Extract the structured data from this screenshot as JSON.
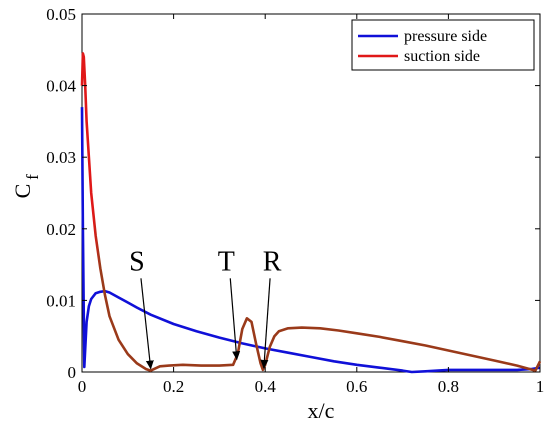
{
  "chart_data": {
    "type": "line",
    "xlabel": "x/c",
    "ylabel": "C",
    "ylabel_sub": "f",
    "xlim": [
      0,
      1
    ],
    "ylim": [
      0,
      0.05
    ],
    "xticks": [
      0,
      0.2,
      0.4,
      0.6,
      0.8,
      1
    ],
    "xtick_labels": [
      "0",
      "0.2",
      "0.4",
      "0.6",
      "0.8",
      "1"
    ],
    "yticks": [
      0,
      0.01,
      0.02,
      0.03,
      0.04,
      0.05
    ],
    "ytick_labels": [
      "0",
      "0.01",
      "0.02",
      "0.03",
      "0.04",
      "0.05"
    ],
    "grid": false,
    "legend_position": "top-right",
    "series": [
      {
        "name": "pressure side",
        "color": "#1010d8",
        "x": [
          0,
          0.002,
          0.005,
          0.01,
          0.015,
          0.02,
          0.03,
          0.04,
          0.05,
          0.06,
          0.08,
          0.1,
          0.12,
          0.15,
          0.2,
          0.25,
          0.3,
          0.35,
          0.4,
          0.45,
          0.5,
          0.55,
          0.6,
          0.65,
          0.7,
          0.72,
          0.75,
          0.8,
          0.85,
          0.9,
          0.95,
          0.98,
          1.0
        ],
        "y": [
          0.037,
          0.02,
          0.0007,
          0.007,
          0.0092,
          0.0102,
          0.011,
          0.0112,
          0.0113,
          0.0111,
          0.0104,
          0.0097,
          0.009,
          0.008,
          0.0067,
          0.0057,
          0.0048,
          0.004,
          0.0033,
          0.0027,
          0.0021,
          0.0015,
          0.001,
          0.0006,
          0.0002,
          0.0,
          0.0001,
          0.0003,
          0.0003,
          0.0003,
          0.0003,
          0.0004,
          0.0006
        ]
      },
      {
        "name": "suction side",
        "color": "#e01818",
        "x": [
          0,
          0.002,
          0.004,
          0.007,
          0.01,
          0.015,
          0.02,
          0.03,
          0.04,
          0.05,
          0.06,
          0.08,
          0.1,
          0.12,
          0.14,
          0.15,
          0.16,
          0.17,
          0.19,
          0.22,
          0.26,
          0.3,
          0.33,
          0.34,
          0.35,
          0.36,
          0.37,
          0.38,
          0.39,
          0.395,
          0.4,
          0.41,
          0.42,
          0.43,
          0.45,
          0.48,
          0.52,
          0.56,
          0.6,
          0.65,
          0.7,
          0.75,
          0.8,
          0.85,
          0.9,
          0.95,
          0.99,
          1.0
        ],
        "y": [
          0.04,
          0.0445,
          0.044,
          0.04,
          0.035,
          0.03,
          0.025,
          0.019,
          0.0145,
          0.0108,
          0.0078,
          0.0045,
          0.0025,
          0.0012,
          0.0004,
          0.0002,
          0.0005,
          0.0008,
          0.0009,
          0.001,
          0.0009,
          0.0009,
          0.001,
          0.0025,
          0.006,
          0.0075,
          0.007,
          0.004,
          0.0012,
          0.0003,
          0.001,
          0.0035,
          0.005,
          0.0057,
          0.0061,
          0.0062,
          0.0061,
          0.0058,
          0.0054,
          0.0049,
          0.0043,
          0.0037,
          0.003,
          0.0023,
          0.0016,
          0.0009,
          0.0002,
          0.0015
        ]
      }
    ],
    "annotations": [
      {
        "label": "S",
        "text_x": 0.12,
        "text_y": 0.0142,
        "arrow_to": [
          0.15,
          0.0002
        ]
      },
      {
        "label": "T",
        "text_x": 0.315,
        "text_y": 0.0142,
        "arrow_to": [
          0.338,
          0.0015
        ]
      },
      {
        "label": "R",
        "text_x": 0.415,
        "text_y": 0.0142,
        "arrow_to": [
          0.397,
          0.0003
        ]
      }
    ]
  }
}
